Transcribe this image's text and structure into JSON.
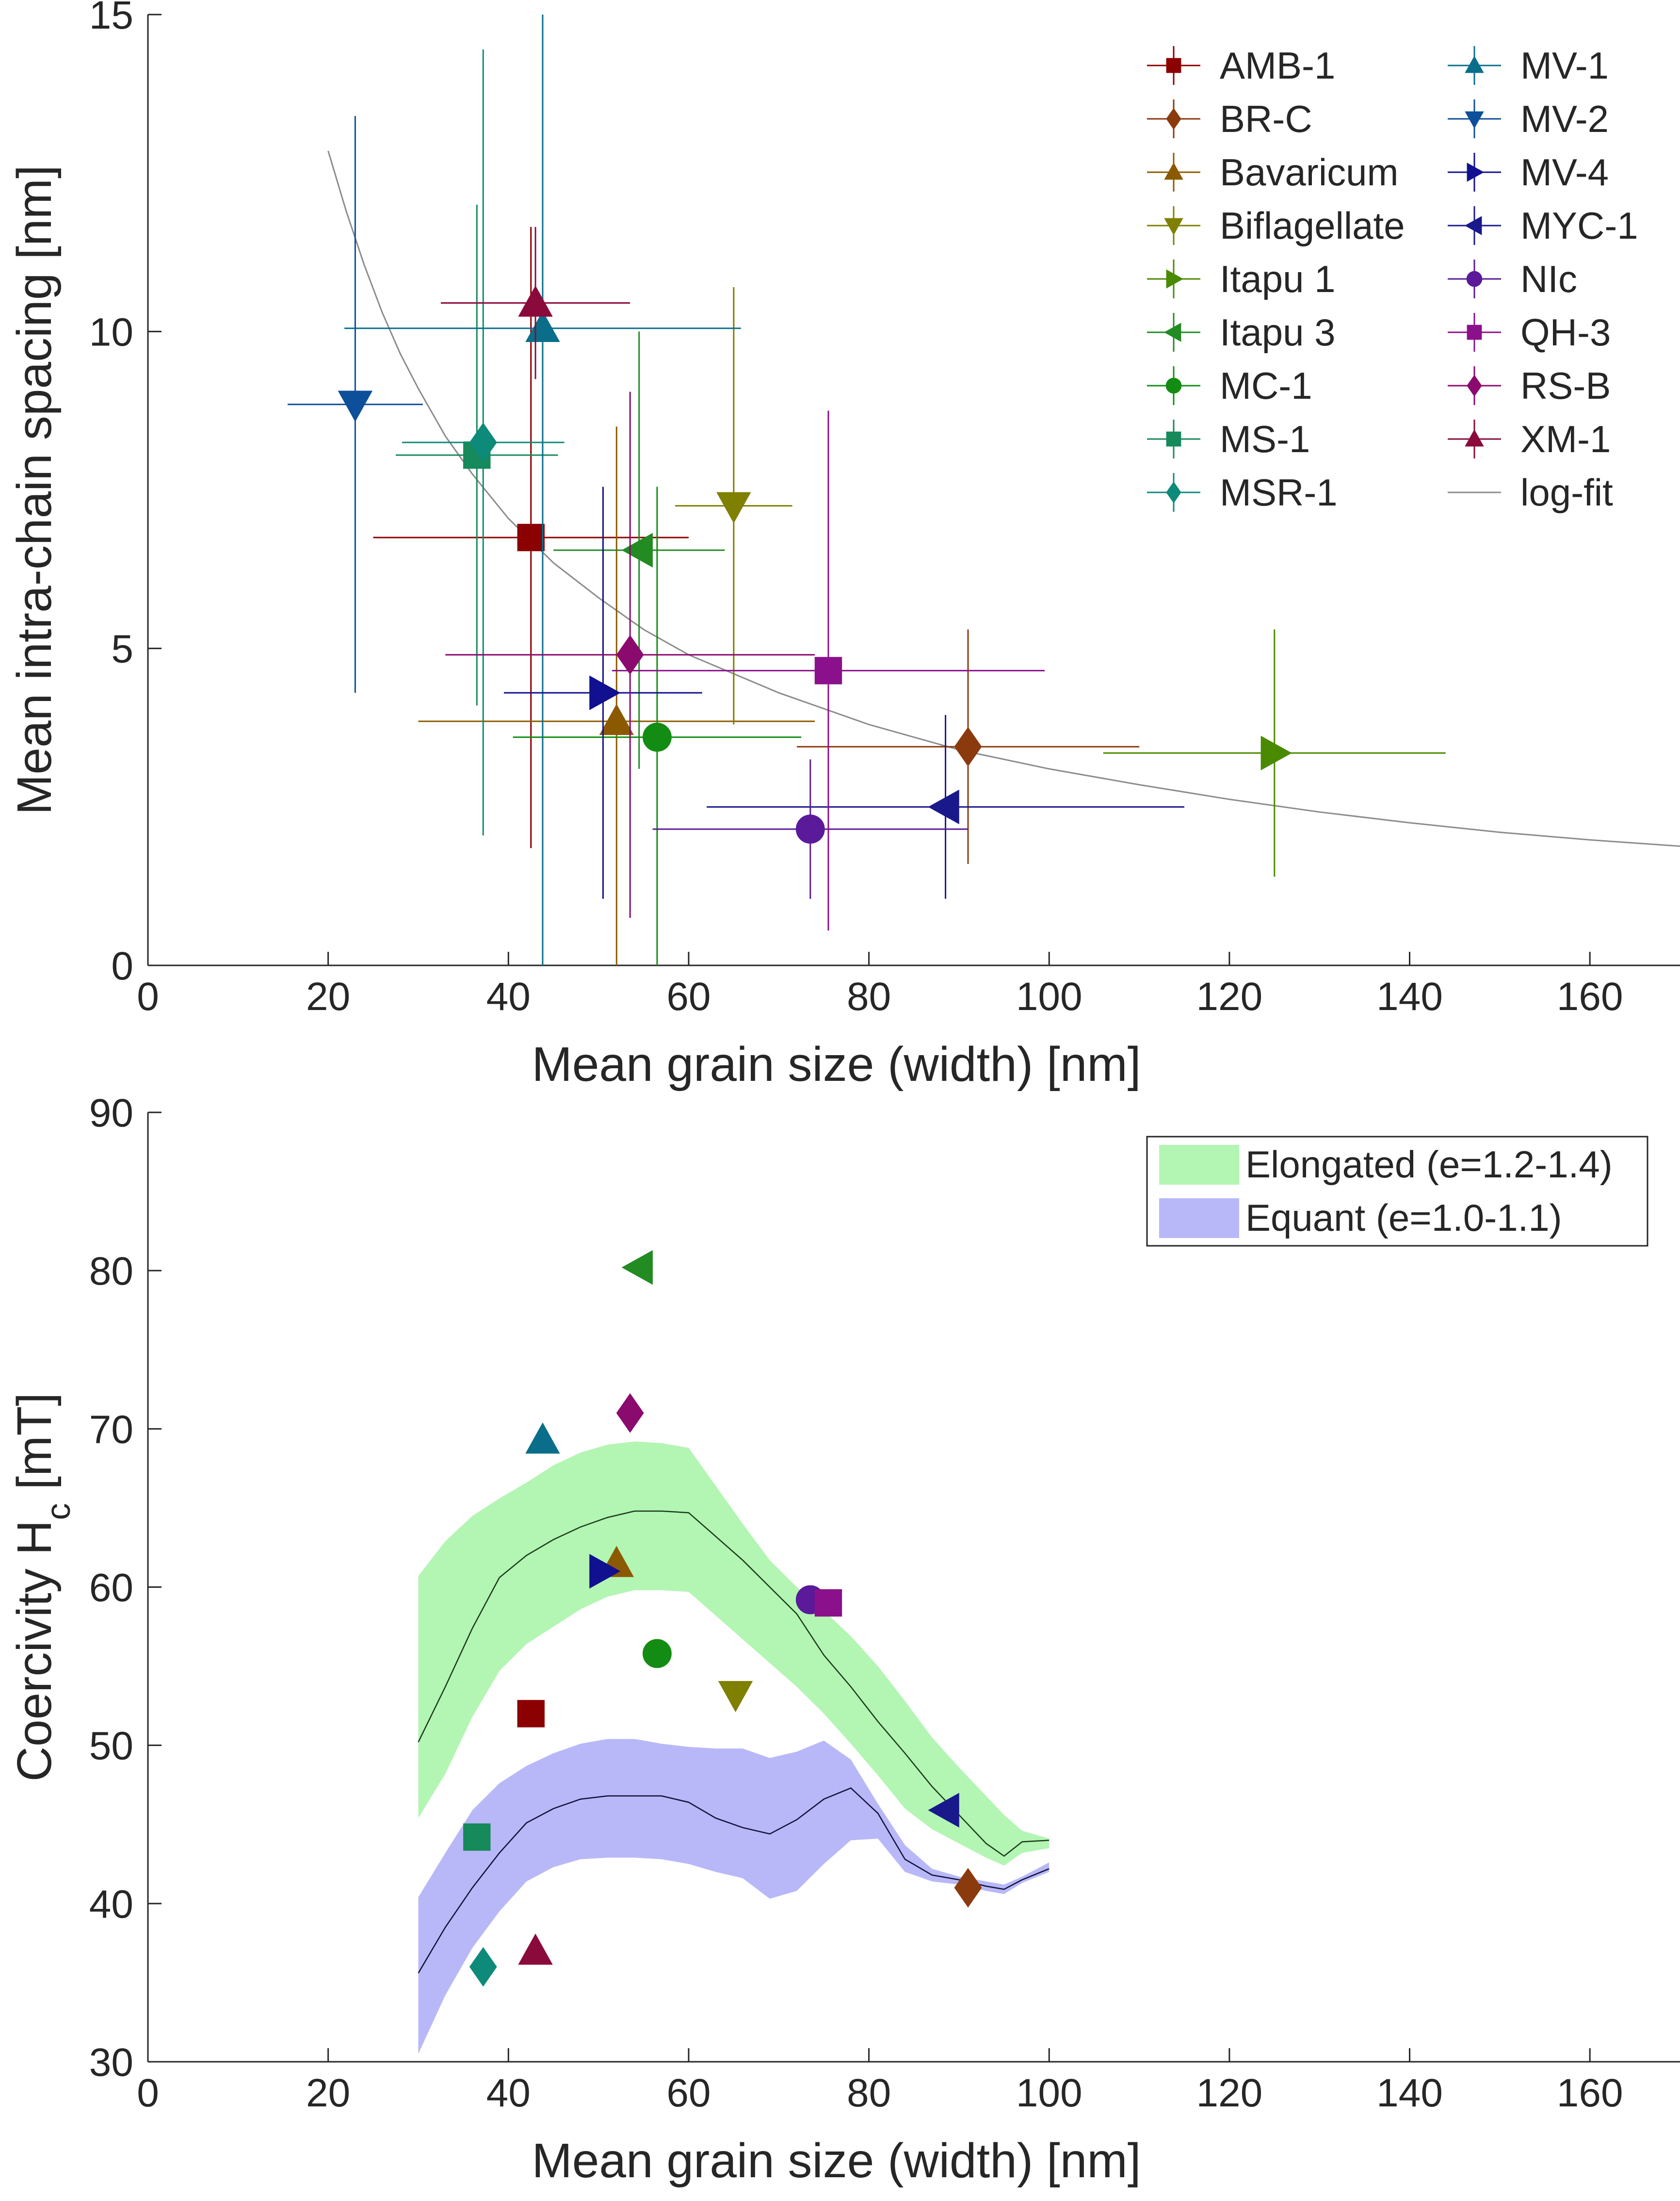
{
  "chart_data": [
    {
      "type": "scatter",
      "xlabel": "Mean grain size (width) [nm]",
      "ylabel": "Mean intra-chain spacing [nm]",
      "xlim": [
        0,
        170
      ],
      "ylim": [
        0,
        15
      ],
      "xticks": [
        0,
        20,
        40,
        60,
        80,
        100,
        120,
        140,
        160
      ],
      "yticks": [
        0,
        5,
        10,
        15
      ],
      "legend_position": "top-right",
      "series": [
        {
          "name": "AMB-1",
          "marker": "square",
          "color": "#8b0000",
          "x": 42.5,
          "y": 6.75,
          "xerr": 17.5,
          "yerr": 4.9
        },
        {
          "name": "BR-C",
          "marker": "diamond",
          "color": "#8b3a0e",
          "x": 91,
          "y": 3.45,
          "xerr": 19,
          "yerr": 1.85
        },
        {
          "name": "Bavaricum",
          "marker": "triangle-up",
          "color": "#8b5a00",
          "x": 52,
          "y": 3.85,
          "xerr": 22,
          "yerr": 4.65
        },
        {
          "name": "Biflagellate",
          "marker": "triangle-down",
          "color": "#7f7f00",
          "x": 65,
          "y": 7.25,
          "xerr": 6.5,
          "yerr": 3.45
        },
        {
          "name": "Itapu 1",
          "marker": "triangle-right",
          "color": "#4a8a00",
          "x": 125,
          "y": 3.35,
          "xerr": 19,
          "yerr": 1.95
        },
        {
          "name": "Itapu 3",
          "marker": "triangle-left",
          "color": "#228b22",
          "x": 54.5,
          "y": 6.55,
          "xerr": 9.5,
          "yerr": 3.45
        },
        {
          "name": "MC-1",
          "marker": "circle",
          "color": "#128c12",
          "x": 56.5,
          "y": 3.6,
          "xerr": 16,
          "yerr": 3.95
        },
        {
          "name": "MS-1",
          "marker": "square",
          "color": "#168a5a",
          "x": 36.5,
          "y": 8.05,
          "xerr": 9,
          "yerr": 3.95
        },
        {
          "name": "MSR-1",
          "marker": "diamond",
          "color": "#0e8a7a",
          "x": 37.2,
          "y": 8.25,
          "xerr": 9,
          "yerr": 6.2
        },
        {
          "name": "MV-1",
          "marker": "triangle-up",
          "color": "#0a6e8a",
          "x": 43.8,
          "y": 10.05,
          "xerr": 22,
          "yerr": 10.05
        },
        {
          "name": "MV-2",
          "marker": "triangle-down",
          "color": "#0d4f9a",
          "x": 23,
          "y": 8.85,
          "xerr": 7.5,
          "yerr": 4.55
        },
        {
          "name": "MV-4",
          "marker": "triangle-right",
          "color": "#101090",
          "x": 50.5,
          "y": 4.3,
          "xerr": 11,
          "yerr": 3.25
        },
        {
          "name": "MYC-1",
          "marker": "triangle-left",
          "color": "#19198c",
          "x": 88.5,
          "y": 2.5,
          "xerr": 26.5,
          "yerr": 1.45
        },
        {
          "name": "NIc",
          "marker": "circle",
          "color": "#5a1a9a",
          "x": 73.5,
          "y": 2.15,
          "xerr": 17.5,
          "yerr": 1.1
        },
        {
          "name": "QH-3",
          "marker": "square",
          "color": "#8b108b",
          "x": 75.5,
          "y": 4.65,
          "xerr": 24,
          "yerr": 4.1
        },
        {
          "name": "RS-B",
          "marker": "diamond",
          "color": "#8b0a6e",
          "x": 53.5,
          "y": 4.9,
          "xerr": 20.5,
          "yerr": 4.15
        },
        {
          "name": "XM-1",
          "marker": "triangle-up",
          "color": "#8b0a3c",
          "x": 43,
          "y": 10.45,
          "xerr": 10.5,
          "yerr": 1.2
        }
      ],
      "fit": {
        "name": "log-fit",
        "color": "#8c8c8c",
        "x": [
          20,
          22,
          24,
          26,
          28,
          30,
          33,
          36,
          40,
          45,
          50,
          55,
          60,
          70,
          80,
          90,
          100,
          110,
          120,
          130,
          140,
          150,
          160,
          170
        ],
        "y": [
          12.85,
          11.9,
          11.05,
          10.3,
          9.65,
          9.1,
          8.35,
          7.75,
          7.05,
          6.35,
          5.8,
          5.3,
          4.9,
          4.3,
          3.8,
          3.4,
          3.1,
          2.85,
          2.62,
          2.42,
          2.25,
          2.1,
          1.98,
          1.88
        ]
      }
    },
    {
      "type": "scatter",
      "xlabel": "Mean grain size (width) [nm]",
      "ylabel": "Coercivity H",
      "ylabel_sub": "c",
      "ylabel_unit": " [mT]",
      "xlim": [
        0,
        170
      ],
      "ylim": [
        30,
        90
      ],
      "xticks": [
        0,
        20,
        40,
        60,
        80,
        100,
        120,
        140,
        160
      ],
      "yticks": [
        30,
        40,
        50,
        60,
        70,
        80,
        90
      ],
      "legend_position": "top-right",
      "bands": [
        {
          "name": "Elongated (e=1.2-1.4)",
          "color": "#b3f5b3",
          "line_color": "#1a3a1a",
          "x": [
            30,
            33,
            36,
            39,
            42,
            45,
            48,
            51,
            54,
            57,
            60,
            63,
            66,
            69,
            72,
            75,
            78,
            81,
            84,
            87,
            90,
            93,
            95,
            97,
            100
          ],
          "upper": [
            60.7,
            62.9,
            64.5,
            65.6,
            66.6,
            67.7,
            68.5,
            69.0,
            69.2,
            69.1,
            68.8,
            66.4,
            64.0,
            61.7,
            60.0,
            58.5,
            56.9,
            55.0,
            52.8,
            50.5,
            48.6,
            46.8,
            45.6,
            44.6,
            44.1
          ],
          "mid": [
            50.2,
            53.7,
            57.4,
            60.6,
            62.0,
            63.0,
            63.8,
            64.4,
            64.8,
            64.8,
            64.7,
            63.2,
            61.7,
            60.0,
            58.3,
            55.7,
            53.7,
            51.5,
            49.5,
            47.4,
            45.6,
            43.8,
            43.0,
            43.9,
            44.0
          ],
          "lower": [
            45.4,
            48.2,
            51.8,
            54.7,
            56.4,
            57.5,
            58.6,
            59.4,
            59.8,
            59.8,
            59.7,
            58.2,
            56.7,
            55.2,
            53.7,
            52.0,
            50.1,
            48.1,
            46.0,
            44.7,
            43.8,
            42.9,
            42.4,
            43.2,
            43.5
          ]
        },
        {
          "name": "Equant (e=1.0-1.1)",
          "color": "#b8b8f8",
          "line_color": "#10103a",
          "x": [
            30,
            33,
            36,
            39,
            42,
            45,
            48,
            51,
            54,
            57,
            60,
            63,
            66,
            69,
            72,
            75,
            78,
            81,
            84,
            87,
            90,
            93,
            95,
            97,
            100
          ],
          "upper": [
            40.4,
            43.2,
            45.9,
            47.6,
            48.7,
            49.5,
            50.1,
            50.4,
            50.4,
            50.1,
            49.9,
            49.8,
            49.8,
            49.2,
            49.6,
            50.3,
            49.1,
            46.3,
            43.7,
            42.2,
            41.7,
            41.4,
            41.2,
            41.7,
            42.6
          ],
          "mid": [
            35.6,
            38.5,
            41.0,
            43.2,
            45.1,
            46.0,
            46.6,
            46.8,
            46.8,
            46.8,
            46.4,
            45.4,
            44.8,
            44.4,
            45.3,
            46.6,
            47.3,
            45.7,
            42.8,
            41.8,
            41.5,
            41.1,
            40.9,
            41.5,
            42.2
          ],
          "lower": [
            30.5,
            34.2,
            37.2,
            39.5,
            41.4,
            42.3,
            42.8,
            42.9,
            42.9,
            42.8,
            42.5,
            42.0,
            41.6,
            40.3,
            40.8,
            42.5,
            44.0,
            44.1,
            42.0,
            41.4,
            41.2,
            40.8,
            40.6,
            41.3,
            42.0
          ]
        }
      ],
      "points": [
        {
          "name": "AMB-1",
          "marker": "square",
          "color": "#8b0000",
          "x": 42.5,
          "y": 52.0
        },
        {
          "name": "BR-C",
          "marker": "diamond",
          "color": "#8b3a0e",
          "x": 91,
          "y": 41.0
        },
        {
          "name": "Bavaricum",
          "marker": "triangle-up",
          "color": "#8b5a00",
          "x": 52,
          "y": 61.5
        },
        {
          "name": "Biflagellate",
          "marker": "triangle-down",
          "color": "#7f7f00",
          "x": 65.2,
          "y": 53.2
        },
        {
          "name": "Itapu 3",
          "marker": "triangle-left",
          "color": "#228b22",
          "x": 54.5,
          "y": 80.2
        },
        {
          "name": "MC-1",
          "marker": "circle",
          "color": "#128c12",
          "x": 56.5,
          "y": 55.8
        },
        {
          "name": "MS-1",
          "marker": "square",
          "color": "#168a5a",
          "x": 36.5,
          "y": 44.2
        },
        {
          "name": "MSR-1",
          "marker": "diamond",
          "color": "#0e8a7a",
          "x": 37.2,
          "y": 36.0
        },
        {
          "name": "MV-1",
          "marker": "triangle-up",
          "color": "#0a6e8a",
          "x": 43.8,
          "y": 69.3
        },
        {
          "name": "MV-4",
          "marker": "triangle-right",
          "color": "#101090",
          "x": 50.5,
          "y": 61.0
        },
        {
          "name": "MYC-1",
          "marker": "triangle-left",
          "color": "#19198c",
          "x": 88.5,
          "y": 45.9
        },
        {
          "name": "NIc",
          "marker": "circle",
          "color": "#5a1a9a",
          "x": 73.5,
          "y": 59.2
        },
        {
          "name": "QH-3",
          "marker": "square",
          "color": "#8b108b",
          "x": 75.5,
          "y": 59.0
        },
        {
          "name": "RS-B",
          "marker": "diamond",
          "color": "#8b0a6e",
          "x": 53.5,
          "y": 71.0
        },
        {
          "name": "XM-1",
          "marker": "triangle-up",
          "color": "#8b0a3c",
          "x": 43,
          "y": 37.0
        }
      ]
    }
  ]
}
